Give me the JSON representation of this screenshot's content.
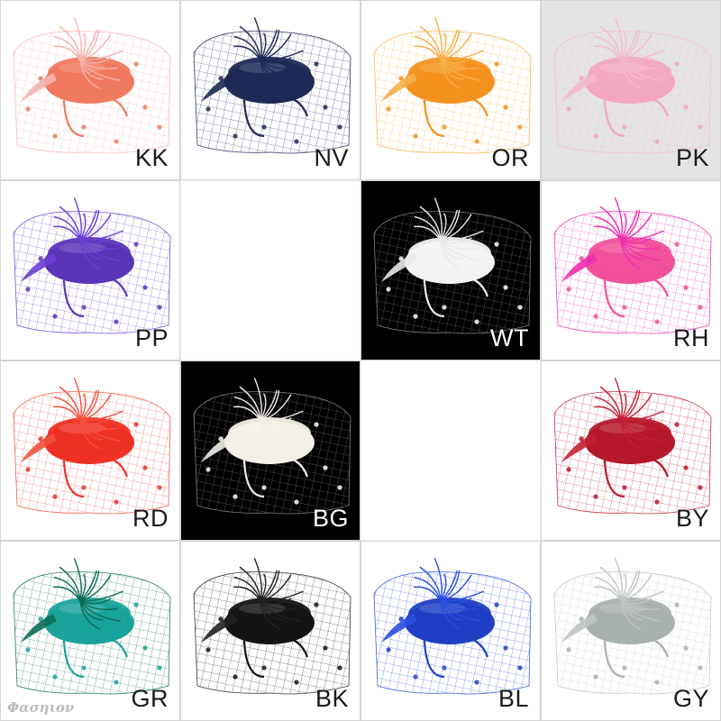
{
  "products": [
    {
      "code": "KK",
      "color": "#f07a5e",
      "accent": "#f5b3ae",
      "bg": "#ffffff",
      "text": "#1a1a1a"
    },
    {
      "code": "NV",
      "color": "#1d2a55",
      "accent": "#1d2a55",
      "bg": "#ffffff",
      "text": "#1a1a1a"
    },
    {
      "code": "OR",
      "color": "#f4921f",
      "accent": "#f7b04a",
      "bg": "#ffffff",
      "text": "#1a1a1a"
    },
    {
      "code": "PK",
      "color": "#f3a6c0",
      "accent": "#f5b9cf",
      "bg": "#e4e4e4",
      "text": "#1a1a1a"
    },
    {
      "code": "PP",
      "color": "#5a35b8",
      "accent": "#6a3fd0",
      "bg": "#ffffff",
      "text": "#1a1a1a"
    },
    null,
    {
      "code": "WT",
      "color": "#f2f2f2",
      "accent": "#e8e8e8",
      "bg": "#000000",
      "text": "#ffffff"
    },
    {
      "code": "RH",
      "color": "#f0509a",
      "accent": "#ee2fb0",
      "bg": "#ffffff",
      "text": "#1a1a1a"
    },
    {
      "code": "RD",
      "color": "#ee3124",
      "accent": "#f2503e",
      "bg": "#ffffff",
      "text": "#1a1a1a"
    },
    {
      "code": "BG",
      "color": "#f3efe6",
      "accent": "#f1ede3",
      "bg": "#000000",
      "text": "#ffffff"
    },
    null,
    {
      "code": "BY",
      "color": "#b5182a",
      "accent": "#c42035",
      "bg": "#ffffff",
      "text": "#1a1a1a"
    },
    {
      "code": "GR",
      "color": "#1aa39a",
      "accent": "#0f6b55",
      "bg": "#ffffff",
      "text": "#1a1a1a"
    },
    {
      "code": "BK",
      "color": "#141414",
      "accent": "#222222",
      "bg": "#ffffff",
      "text": "#1a1a1a"
    },
    {
      "code": "BL",
      "color": "#1f3fc4",
      "accent": "#2a4fe0",
      "bg": "#ffffff",
      "text": "#1a1a1a"
    },
    {
      "code": "GY",
      "color": "#a9b0b0",
      "accent": "#bfc4c4",
      "bg": "#ffffff",
      "text": "#1a1a1a"
    }
  ],
  "watermark": "Φασηιον"
}
